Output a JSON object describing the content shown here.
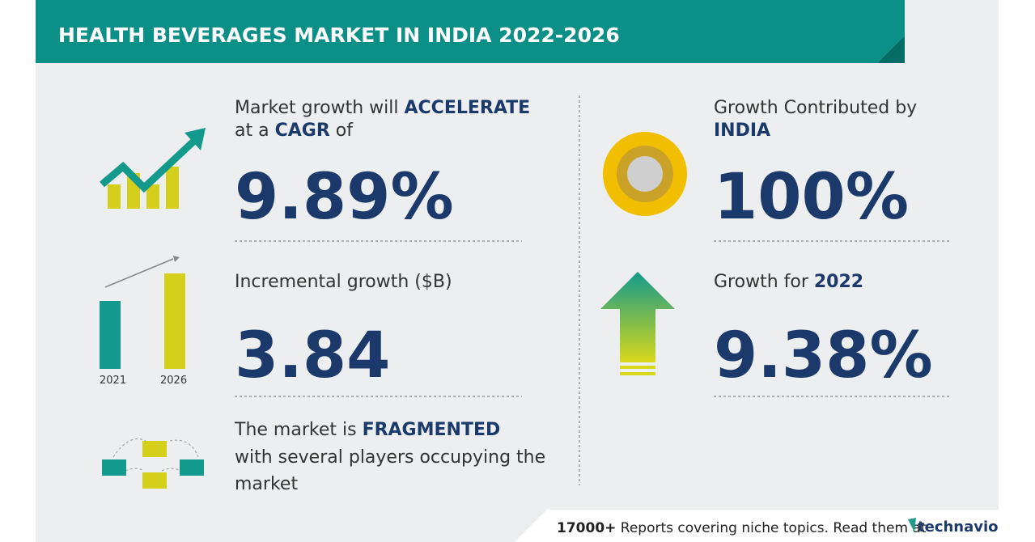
{
  "header": {
    "title": "HEALTH BEVERAGES MARKET IN INDIA 2022-2026"
  },
  "left": {
    "growth": {
      "line1": "Market growth will",
      "line1_bold": "ACCELERATE",
      "line2_start": "at a",
      "line2_bold": "CAGR",
      "line2_end": "of",
      "value": "9.89%"
    },
    "incremental": {
      "label": "Incremental growth ($B)",
      "value": "3.84",
      "year_start": "2021",
      "year_end": "2026"
    },
    "market": {
      "line1": "The market is",
      "line1_bold": "FRAGMENTED",
      "line2": "with several players occupying the",
      "line3": "market"
    }
  },
  "right": {
    "contribution": {
      "line1": "Growth Contributed by",
      "line2_bold": "INDIA",
      "value": "100%"
    },
    "yoy": {
      "label": "Growth for",
      "label_bold": "2022",
      "value": "9.38%"
    }
  },
  "footer": {
    "count": "17000+",
    "text": "Reports covering niche topics. Read them at",
    "brand": "technavio"
  }
}
